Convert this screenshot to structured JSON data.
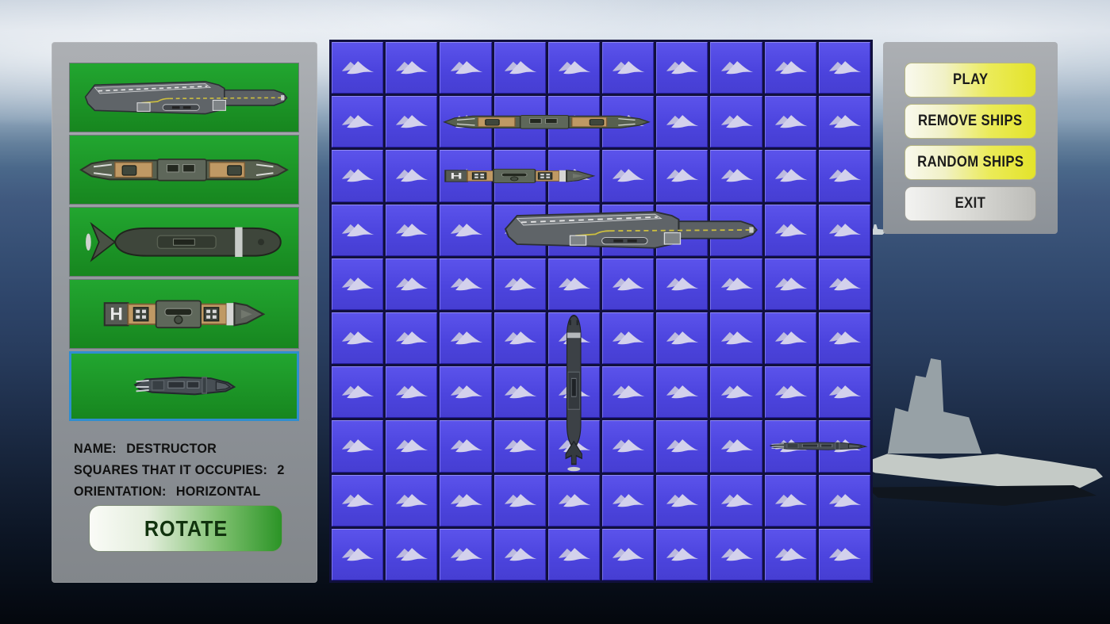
{
  "sidebar": {
    "ships": [
      {
        "id": "carrier",
        "selected": false
      },
      {
        "id": "battleship",
        "selected": false
      },
      {
        "id": "submarine",
        "selected": false
      },
      {
        "id": "hospital-ship",
        "selected": false
      },
      {
        "id": "destroyer",
        "selected": true
      }
    ],
    "info": {
      "name_label": "NAME:",
      "name_value": "DESTRUCTOR",
      "squares_label": "SQUARES THAT IT OCCUPIES:",
      "squares_value": "2",
      "orientation_label": "ORIENTATION:",
      "orientation_value": "HORIZONTAL"
    },
    "rotate_label": "ROTATE"
  },
  "menu": {
    "play_label": "PLAY",
    "remove_label": "REMOVE SHIPS",
    "random_label": "RANDOM SHIPS",
    "exit_label": "EXIT"
  },
  "board": {
    "rows": 10,
    "cols": 10,
    "cell_icon": "double-wave-icon",
    "placed_ships": [
      {
        "type": "battleship",
        "row": 2,
        "col": 3,
        "span": 4,
        "orientation": "horizontal"
      },
      {
        "type": "hospital-ship",
        "row": 3,
        "col": 3,
        "span": 3,
        "orientation": "horizontal"
      },
      {
        "type": "carrier",
        "row": 4,
        "col": 4,
        "span": 5,
        "orientation": "horizontal"
      },
      {
        "type": "submarine",
        "row": 6,
        "col": 5,
        "span": 3,
        "orientation": "vertical"
      },
      {
        "type": "destroyer",
        "row": 8,
        "col": 9,
        "span": 2,
        "orientation": "horizontal"
      }
    ]
  },
  "colors": {
    "cell_blue": "#4c44de",
    "grid_gap": "#11103e",
    "tile_green": "#1d9e2a",
    "selected_tile_border": "#2f8ecf",
    "menu_button_yellow": "#e3e32a",
    "rotate_button_green": "#2b9426",
    "wave_icon": "#cfcdea"
  }
}
